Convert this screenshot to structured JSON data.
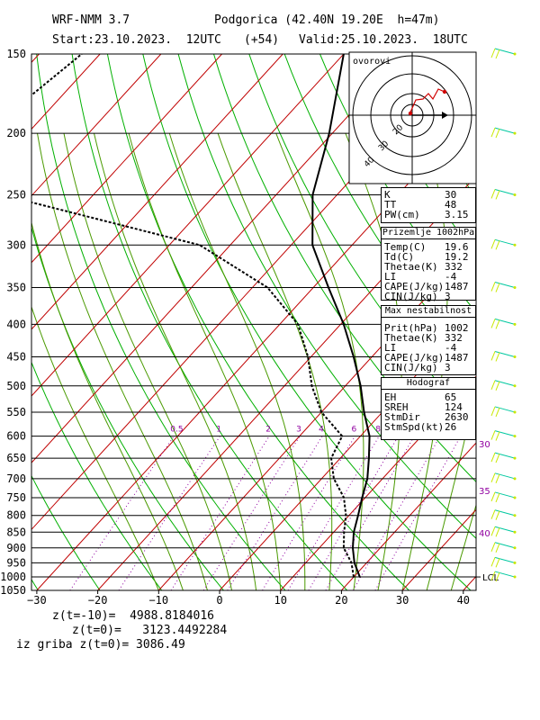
{
  "header": {
    "model": "WRF-NMM 3.7",
    "station": "Podgorica (42.40N 19.20E  h=47m)",
    "start": "Start:23.10.2023.  12UTC",
    "lead": "(+54)",
    "valid": "Valid:25.10.2023.  18UTC"
  },
  "hodograph": {
    "label": "ovorovi",
    "ring_labels": [
      "10",
      "20",
      "30",
      "40"
    ]
  },
  "panels": {
    "indices": [
      {
        "label": "K",
        "value": "30"
      },
      {
        "label": "TT",
        "value": "48"
      },
      {
        "label": "PW(cm)",
        "value": "3.15"
      }
    ],
    "surface": {
      "title": "Prizemlje 1002hPa",
      "rows": [
        {
          "label": "Temp(C)",
          "value": "19.6"
        },
        {
          "label": "Td(C)",
          "value": "19.2"
        },
        {
          "label": "Thetae(K)",
          "value": "332"
        },
        {
          "label": "LI",
          "value": "-4"
        },
        {
          "label": "CAPE(J/kg)",
          "value": "1487"
        },
        {
          "label": "CIN(J/kg)",
          "value": "3"
        }
      ]
    },
    "max_instability": {
      "title": "Max nestabilnost",
      "rows": [
        {
          "label": "Prit(hPa)",
          "value": "1002"
        },
        {
          "label": "Thetae(K)",
          "value": "332"
        },
        {
          "label": "LI",
          "value": "-4"
        },
        {
          "label": "CAPE(J/kg)",
          "value": "1487"
        },
        {
          "label": "CIN(J/kg)",
          "value": "3"
        }
      ]
    },
    "hodograf": {
      "title": "Hodograf",
      "rows": [
        {
          "label": "EH",
          "value": "65"
        },
        {
          "label": "SREH",
          "value": "124"
        },
        {
          "label": "StmDir",
          "value": "2630"
        },
        {
          "label": "StmSpd(kt)",
          "value": "26"
        }
      ]
    }
  },
  "footer": {
    "line1": "z(t=-10)=  4988.8184016",
    "line2": "z(t=0)=   3123.4492284",
    "line3": "iz griba z(t=0)= 3086.49"
  },
  "chart_data": {
    "type": "line",
    "title": "",
    "xlabel": "",
    "ylabel": "",
    "x_ticks": [
      -30,
      -20,
      -10,
      0,
      10,
      20,
      30,
      40
    ],
    "xlim": [
      -32,
      42
    ],
    "pressure_ticks": [
      150,
      200,
      250,
      300,
      350,
      400,
      450,
      500,
      550,
      600,
      650,
      700,
      750,
      800,
      850,
      900,
      950,
      1000,
      1050
    ],
    "ylim": [
      150,
      1050
    ],
    "y_scale": "log-pressure",
    "mixing_ratio_labels": [
      "0.5",
      "1",
      "2",
      "3",
      "4",
      "6",
      "8"
    ],
    "theta_e_labels": [
      "30",
      "35",
      "40"
    ],
    "lcl_label": "LCL",
    "series": [
      {
        "role": "temperature",
        "color": "#000000",
        "points": [
          {
            "p": 1000,
            "t": 21.0
          },
          {
            "p": 950,
            "t": 18.0
          },
          {
            "p": 900,
            "t": 15.5
          },
          {
            "p": 850,
            "t": 13.3
          },
          {
            "p": 800,
            "t": 11.5
          },
          {
            "p": 750,
            "t": 9.5
          },
          {
            "p": 700,
            "t": 7.5
          },
          {
            "p": 650,
            "t": 4.7
          },
          {
            "p": 600,
            "t": 1.5
          },
          {
            "p": 550,
            "t": -3.0
          },
          {
            "p": 500,
            "t": -7.5
          },
          {
            "p": 450,
            "t": -13.0
          },
          {
            "p": 400,
            "t": -19.5
          },
          {
            "p": 350,
            "t": -27.5
          },
          {
            "p": 300,
            "t": -36.5
          },
          {
            "p": 250,
            "t": -44.0
          },
          {
            "p": 200,
            "t": -50.5
          },
          {
            "p": 150,
            "t": -60.0
          }
        ]
      },
      {
        "role": "dewpoint",
        "color": "#000000",
        "dashed": true,
        "points": [
          {
            "p": 1000,
            "t": 20.0
          },
          {
            "p": 950,
            "t": 17.5
          },
          {
            "p": 900,
            "t": 14.0
          },
          {
            "p": 850,
            "t": 11.7
          },
          {
            "p": 800,
            "t": 9.5
          },
          {
            "p": 750,
            "t": 6.5
          },
          {
            "p": 700,
            "t": 2.0
          },
          {
            "p": 650,
            "t": -1.5
          },
          {
            "p": 600,
            "t": -3.0
          },
          {
            "p": 550,
            "t": -10.0
          },
          {
            "p": 500,
            "t": -15.5
          },
          {
            "p": 450,
            "t": -20.5
          },
          {
            "p": 400,
            "t": -27.0
          },
          {
            "p": 350,
            "t": -37.5
          },
          {
            "p": 300,
            "t": -55.0
          },
          {
            "p": 250,
            "t": -95.0
          },
          {
            "p": 200,
            "t": -107.0
          },
          {
            "p": 150,
            "t": -103.0
          }
        ]
      }
    ],
    "colors": {
      "isotherm": "#c00000",
      "dry_adiabat": "#00b000",
      "moist_adiabat": "#4a9a00",
      "mixing_ratio": "#9000a0",
      "wind_barb": "#c8e800"
    }
  }
}
